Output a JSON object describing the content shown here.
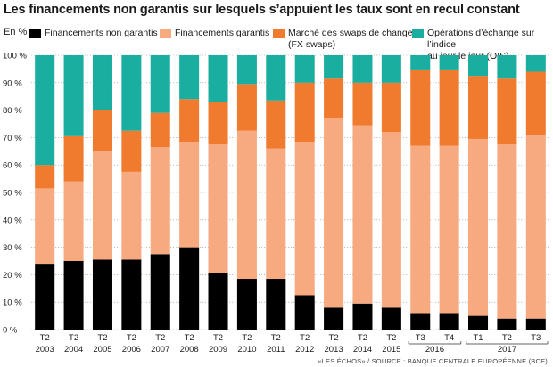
{
  "title": "Les financements non garantis sur lesquels s’appuient les taux sont en recul constant",
  "unit_label": "En %",
  "source": "«LES ÉCHOS» / SOURCE : BANQUE CENTRALE EUROPÉENNE (BCE)",
  "legend": [
    {
      "label": "Financements non garantis",
      "color": "#000000"
    },
    {
      "label": "Financements garantis",
      "color": "#f7a97f"
    },
    {
      "label": "Marché des swaps de change\n(FX swaps)",
      "color": "#f07a2e"
    },
    {
      "label": "Opérations d’échange sur l’indice\nau jour le jour (OIS)",
      "color": "#1aaea0"
    }
  ],
  "chart_data": {
    "type": "bar",
    "stacked": true,
    "title": "Les financements non garantis sur lesquels s’appuient les taux sont en recul constant",
    "ylabel": "En %",
    "ylim": [
      0,
      100
    ],
    "yticks": [
      "0 %",
      "10 %",
      "20 %",
      "30 %",
      "40 %",
      "50 %",
      "60 %",
      "70 %",
      "80 %",
      "90 %",
      "100 %"
    ],
    "grid": true,
    "categories": [
      {
        "quarter": "T2",
        "year": "2003"
      },
      {
        "quarter": "T2",
        "year": "2004"
      },
      {
        "quarter": "T2",
        "year": "2005"
      },
      {
        "quarter": "T2",
        "year": "2006"
      },
      {
        "quarter": "T2",
        "year": "2007"
      },
      {
        "quarter": "T2",
        "year": "2008"
      },
      {
        "quarter": "T2",
        "year": "2009"
      },
      {
        "quarter": "T2",
        "year": "2010"
      },
      {
        "quarter": "T2",
        "year": "2011"
      },
      {
        "quarter": "T2",
        "year": "2012"
      },
      {
        "quarter": "T2",
        "year": "2013"
      },
      {
        "quarter": "T2",
        "year": "2014"
      },
      {
        "quarter": "T2",
        "year": "2015"
      },
      {
        "quarter": "T3",
        "year": "2016"
      },
      {
        "quarter": "T4",
        "year": ""
      },
      {
        "quarter": "T1",
        "year": ""
      },
      {
        "quarter": "T2",
        "year": "2017"
      },
      {
        "quarter": "T3",
        "year": ""
      }
    ],
    "year_groups": [
      {
        "label": "2016",
        "start": 13,
        "end": 14
      },
      {
        "label": "2017",
        "start": 15,
        "end": 17
      }
    ],
    "series": [
      {
        "name": "Financements non garantis",
        "color": "#000000",
        "values": [
          24,
          25,
          25.5,
          25.5,
          27.5,
          30,
          20.5,
          18.5,
          18.5,
          12.5,
          8,
          9.5,
          8,
          6,
          6,
          5,
          4,
          4
        ]
      },
      {
        "name": "Financements garantis",
        "color": "#f7a97f",
        "values": [
          27.5,
          29,
          39.5,
          32,
          39,
          38.5,
          47,
          54,
          47.5,
          56,
          69,
          65,
          64,
          61,
          61,
          64.5,
          63.5,
          67
        ]
      },
      {
        "name": "Marché des swaps de change (FX swaps)",
        "color": "#f07a2e",
        "values": [
          8.5,
          16.5,
          15,
          15,
          12.5,
          15.5,
          15.5,
          17,
          17.5,
          21.5,
          14.5,
          15.5,
          18,
          27.5,
          27.5,
          23,
          24,
          23
        ]
      },
      {
        "name": "Opérations d’échange sur l’indice au jour le jour (OIS)",
        "color": "#1aaea0",
        "values": [
          40,
          29.5,
          20,
          27.5,
          21,
          16,
          17,
          10.5,
          16.5,
          10,
          8.5,
          10,
          10,
          5.5,
          5.5,
          7.5,
          8.5,
          6
        ]
      }
    ]
  }
}
